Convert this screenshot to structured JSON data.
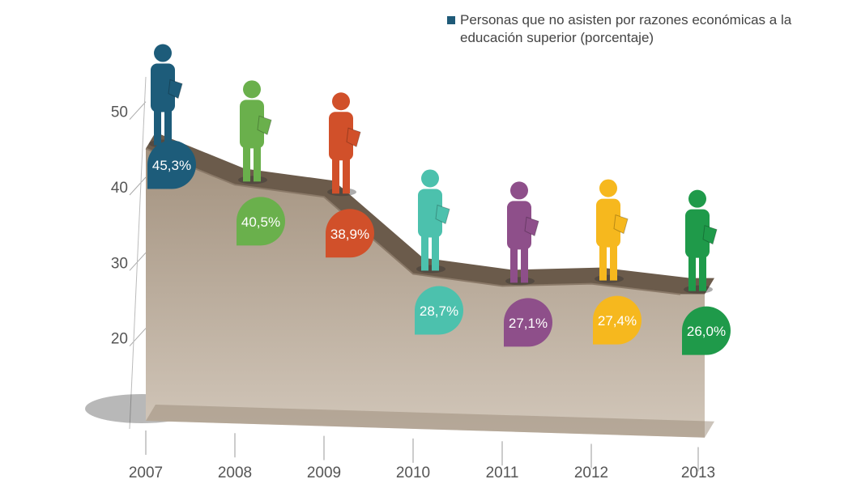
{
  "chart_data": {
    "type": "area",
    "categories": [
      "2007",
      "2008",
      "2009",
      "2010",
      "2011",
      "2012",
      "2013"
    ],
    "series": [
      {
        "name": "Personas que no asisten por razones económicas a la educación superior (porcentaje)",
        "color": "#1f5a78",
        "values": [
          45.3,
          40.5,
          38.9,
          28.7,
          27.1,
          27.4,
          26.0
        ],
        "value_labels": [
          "45,3%",
          "40,5%",
          "38,9%",
          "28,7%",
          "27,1%",
          "27,4%",
          "26,0%"
        ],
        "colors": [
          "#1d5c7a",
          "#6ab04c",
          "#d1502a",
          "#4cc1ad",
          "#8e4f8a",
          "#f6b81e",
          "#1f9a4a"
        ]
      }
    ],
    "ylim": [
      10,
      55
    ],
    "yticks": [
      20,
      30,
      40,
      50
    ]
  }
}
